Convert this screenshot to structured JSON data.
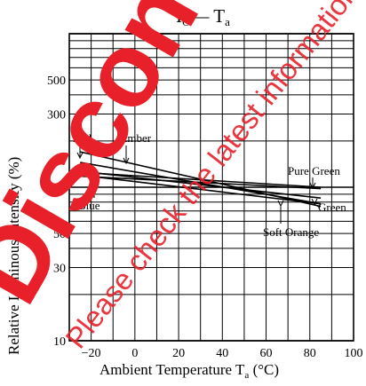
{
  "title": {
    "main": "I",
    "sub": "O",
    "dash": "—",
    "rhs": " T",
    "rhs_sub": "a"
  },
  "axes": {
    "ylabel": "Relative Luminous Intensity  (%)",
    "xlabel_main": "Ambient Temperature  T",
    "xlabel_sub": "a",
    "xlabel_unit": " (°C)"
  },
  "chart_data": {
    "type": "line",
    "title": "IO— Ta",
    "xlabel": "Ambient Temperature Ta (°C)",
    "ylabel": "Relative Luminous Intensity (%)",
    "xlim": [
      -30,
      100
    ],
    "ylim": [
      10,
      1000
    ],
    "yscale": "log",
    "grid": true,
    "x_ticks": [
      -20,
      0,
      20,
      40,
      60,
      80,
      100
    ],
    "x_tick_labels": [
      "−20",
      "0",
      "20",
      "40",
      "60",
      "80",
      "100"
    ],
    "y_ticks": [
      10,
      30,
      50,
      100,
      300,
      500
    ],
    "y_tick_labels": [
      "10",
      "30",
      "50",
      "100",
      "300",
      "500"
    ],
    "series": [
      {
        "name": "Red",
        "x": [
          -25,
          85
        ],
        "y": [
          170,
          75
        ],
        "label_pos": "top-left"
      },
      {
        "name": "Amber",
        "x": [
          -25,
          85
        ],
        "y": [
          145,
          78
        ],
        "label_pos": "top-left"
      },
      {
        "name": "Blue",
        "x": [
          -25,
          85
        ],
        "y": [
          118,
          98
        ],
        "label_pos": "bottom-left"
      },
      {
        "name": "Pure Green",
        "x": [
          -25,
          85
        ],
        "y": [
          125,
          100
        ],
        "label_pos": "right"
      },
      {
        "name": "Green",
        "x": [
          -25,
          85
        ],
        "y": [
          127,
          85
        ],
        "label_pos": "right"
      },
      {
        "name": "Soft Orange",
        "x": [
          -25,
          85
        ],
        "y": [
          120,
          78
        ],
        "label_pos": "bottom-right"
      }
    ]
  },
  "watermark": {
    "lines": [
      "Discontinued",
      "Please check the latest information."
    ],
    "color": "#e8202a"
  }
}
